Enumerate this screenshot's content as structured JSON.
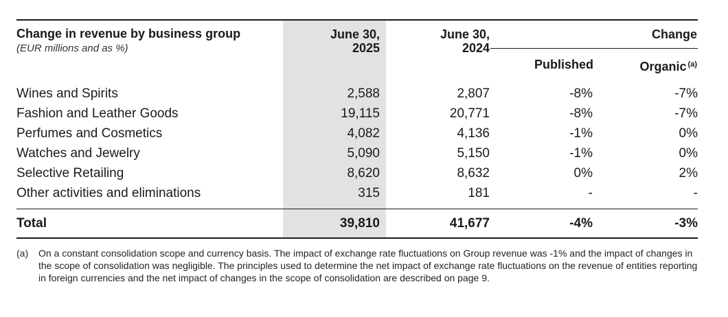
{
  "table": {
    "title": "Change in revenue by business group",
    "subtitle": "(EUR millions and as %)",
    "columns": {
      "june_2025": "June 30,\n2025",
      "june_2024": "June 30,\n2024",
      "change": "Change",
      "published": "Published",
      "organic": "Organic",
      "organic_note": "(a)"
    },
    "rows": [
      {
        "label": "Wines and Spirits",
        "v2025": "2,588",
        "v2024": "2,807",
        "published": "-8%",
        "organic": "-7%"
      },
      {
        "label": "Fashion and Leather Goods",
        "v2025": "19,115",
        "v2024": "20,771",
        "published": "-8%",
        "organic": "-7%"
      },
      {
        "label": "Perfumes and Cosmetics",
        "v2025": "4,082",
        "v2024": "4,136",
        "published": "-1%",
        "organic": "0%"
      },
      {
        "label": "Watches and Jewelry",
        "v2025": "5,090",
        "v2024": "5,150",
        "published": "-1%",
        "organic": "0%"
      },
      {
        "label": "Selective Retailing",
        "v2025": "8,620",
        "v2024": "8,632",
        "published": "0%",
        "organic": "2%"
      },
      {
        "label": "Other activities and eliminations",
        "v2025": "315",
        "v2024": "181",
        "published": "-",
        "organic": "-"
      }
    ],
    "total": {
      "label": "Total",
      "v2025": "39,810",
      "v2024": "41,677",
      "published": "-4%",
      "organic": "-3%"
    }
  },
  "footnote": {
    "mark": "(a)",
    "text": "On a constant consolidation scope and currency basis. The impact of exchange rate fluctuations on Group revenue was -1% and the impact of changes in the scope of consolidation was negligible. The principles used to determine the net impact of exchange rate fluctuations on the revenue of entities reporting in foreign currencies and the net impact of changes in the scope of consolidation are described on page 9."
  }
}
